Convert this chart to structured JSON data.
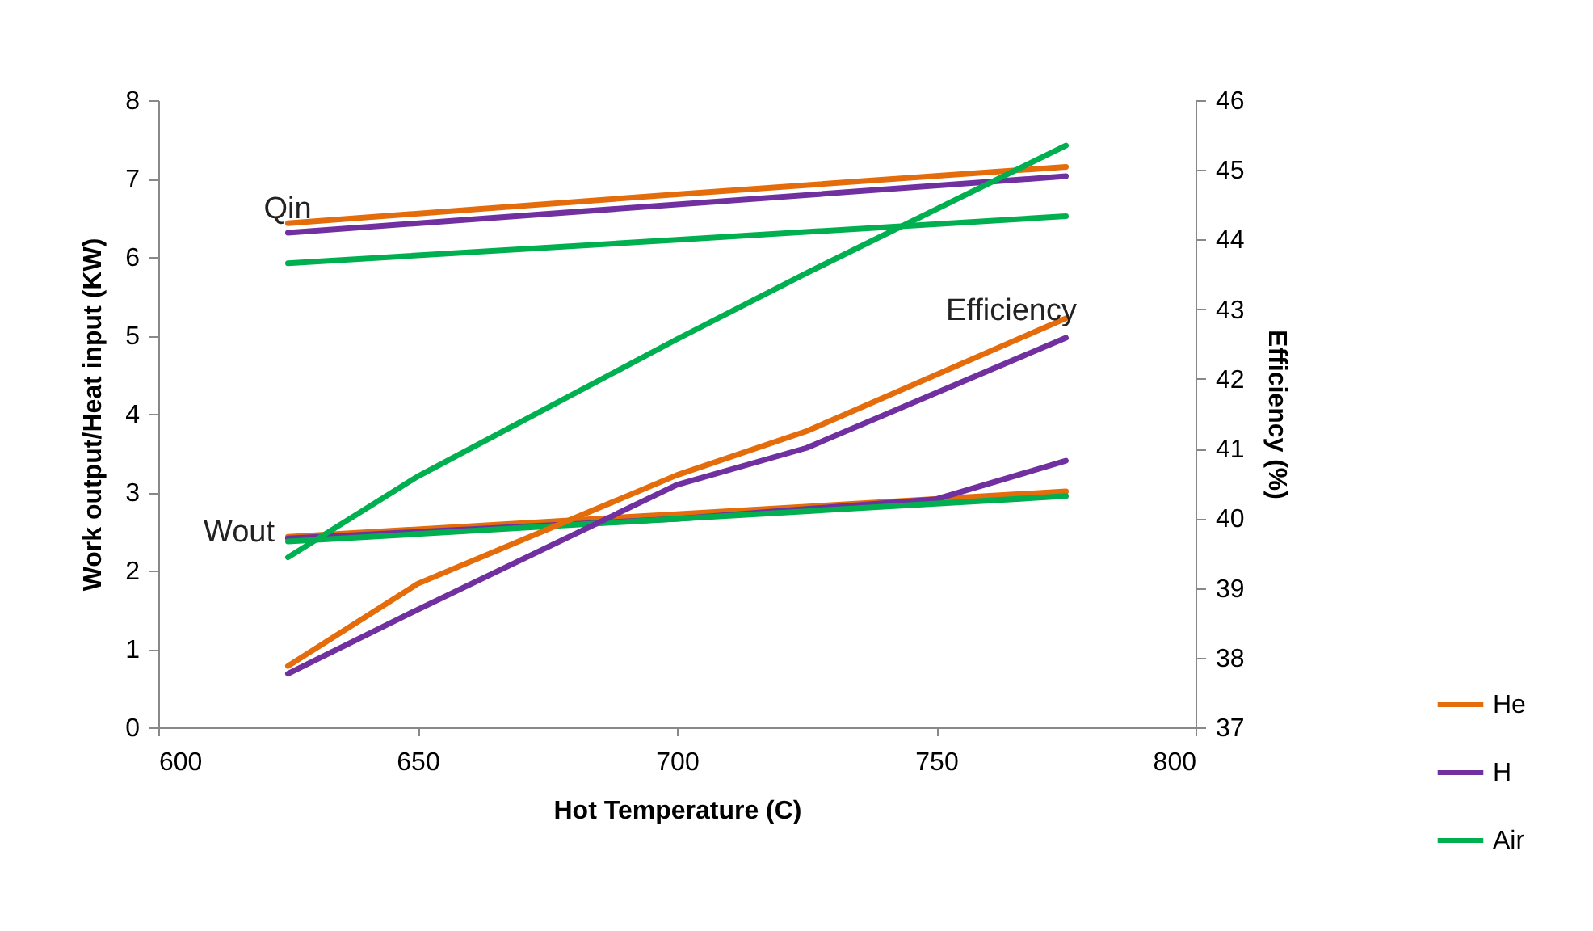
{
  "chart_data": {
    "type": "line",
    "xlabel": "Hot Temperature (C)",
    "ylabel": "Work output/Heat input (KW)",
    "y2label": "Efficiency (%)",
    "xlim": [
      600,
      800
    ],
    "xticks": [
      600,
      650,
      700,
      750,
      800
    ],
    "ylim": [
      0,
      8
    ],
    "yticks": [
      0,
      1,
      2,
      3,
      4,
      5,
      6,
      7,
      8
    ],
    "y2lim": [
      37,
      46
    ],
    "y2ticks": [
      37,
      38,
      39,
      40,
      41,
      42,
      43,
      44,
      45,
      46
    ],
    "grid": false,
    "legend": "bottom right",
    "marker": "none",
    "line_style": "solid",
    "annotations": [
      "Qin",
      "Wout",
      "Efficiency"
    ],
    "series": [
      {
        "name": "He",
        "color": "#e46c0a",
        "x": [
          625,
          700,
          775
        ],
        "values": [
          6.43,
          6.8,
          7.15
        ]
      },
      {
        "name": "H",
        "color": "#7030a0",
        "x": [
          625,
          700,
          775
        ],
        "values": [
          6.31,
          6.67,
          7.03
        ]
      },
      {
        "name": "Air",
        "color": "#00b050",
        "x": [
          625,
          700,
          775
        ],
        "values": [
          5.92,
          6.22,
          6.52
        ]
      },
      {
        "color": "#e46c0a",
        "x": [
          625,
          700,
          775
        ],
        "values": [
          2.43,
          2.72,
          3.01
        ]
      },
      {
        "color": "#7030a0",
        "x": [
          625,
          700,
          750,
          775
        ],
        "values": [
          2.41,
          2.66,
          2.91,
          3.4
        ]
      },
      {
        "color": "#00b050",
        "x": [
          625,
          700,
          775
        ],
        "values": [
          2.37,
          2.66,
          2.95
        ]
      },
      {
        "color": "#e46c0a",
        "axis": "y2",
        "x": [
          625,
          650,
          700,
          725,
          775
        ],
        "values": [
          37.88,
          39.06,
          40.62,
          41.25,
          42.87
        ]
      },
      {
        "color": "#7030a0",
        "axis": "y2",
        "x": [
          625,
          650,
          700,
          725,
          775
        ],
        "values": [
          37.77,
          38.69,
          40.48,
          41.01,
          42.59
        ]
      },
      {
        "color": "#00b050",
        "axis": "y2",
        "x": [
          625,
          650,
          700,
          725,
          775
        ],
        "values": [
          39.44,
          40.6,
          42.57,
          43.52,
          45.35
        ]
      }
    ]
  }
}
